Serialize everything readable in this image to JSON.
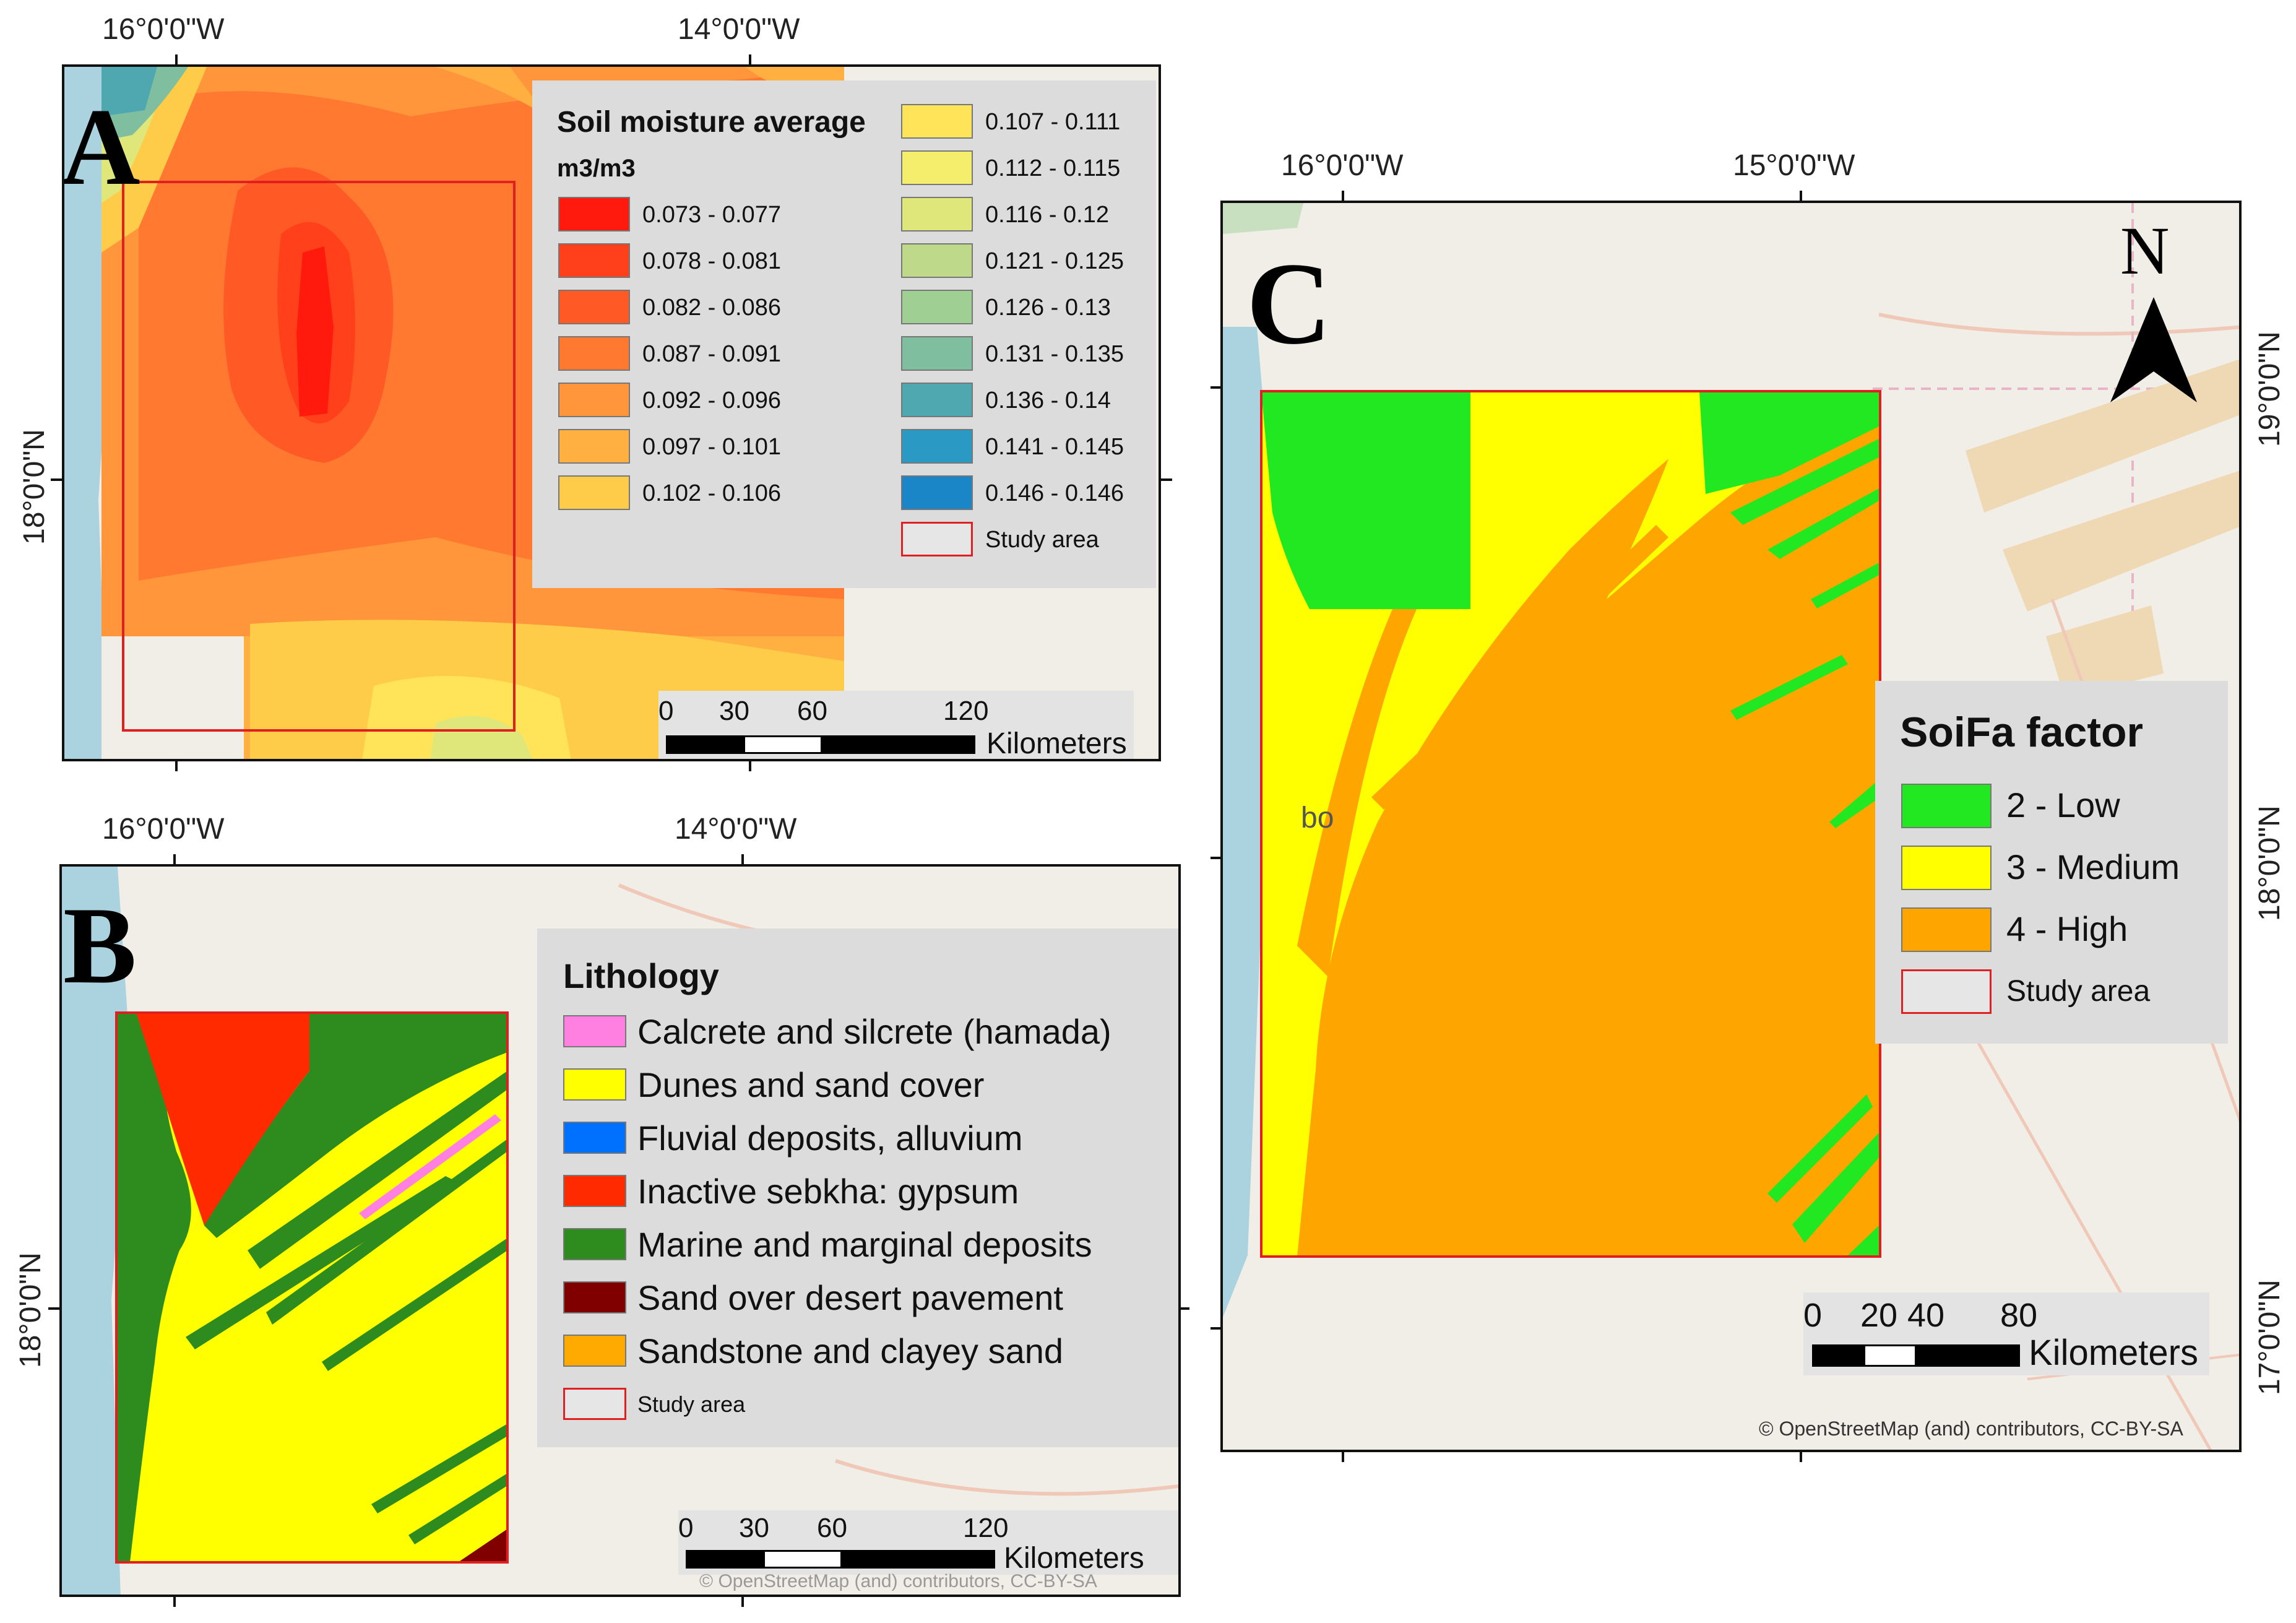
{
  "panel_a": {
    "letter": "A",
    "lon_labels": [
      "16°0'0\"W",
      "14°0'0\"W"
    ],
    "lat_label": "18°0'0\"N",
    "legend_title": "Soil moisture average",
    "legend_unit": "m3/m3",
    "legend_left": [
      {
        "label": "0.073 - 0.077",
        "color": "#ff1a0d"
      },
      {
        "label": "0.078 - 0.081",
        "color": "#ff401a"
      },
      {
        "label": "0.082 - 0.086",
        "color": "#ff5a26"
      },
      {
        "label": "0.087 - 0.091",
        "color": "#ff7a30"
      },
      {
        "label": "0.092 - 0.096",
        "color": "#ff963c"
      },
      {
        "label": "0.097 - 0.101",
        "color": "#ffb040"
      },
      {
        "label": "0.102 - 0.106",
        "color": "#ffcc4a"
      }
    ],
    "legend_right": [
      {
        "label": "0.107 - 0.111",
        "color": "#ffe45a"
      },
      {
        "label": "0.112 - 0.115",
        "color": "#f5ee6c"
      },
      {
        "label": "0.116 - 0.12",
        "color": "#dfe67a"
      },
      {
        "label": "0.121 - 0.125",
        "color": "#bfd98a"
      },
      {
        "label": "0.126 - 0.13",
        "color": "#9fcf92"
      },
      {
        "label": "0.131 - 0.135",
        "color": "#7fbfa0"
      },
      {
        "label": "0.136 - 0.14",
        "color": "#4fa8b0"
      },
      {
        "label": "0.141 - 0.145",
        "color": "#2a9ac4"
      },
      {
        "label": "0.146 - 0.146",
        "color": "#1a86c8"
      }
    ],
    "study_area": "Study area",
    "scale_numbers": [
      "0",
      "30",
      "60",
      "120"
    ],
    "scale_unit": "Kilometers"
  },
  "panel_b": {
    "letter": "B",
    "lon_labels": [
      "16°0'0\"W",
      "14°0'0\"W"
    ],
    "lat_label": "18°0'0\"N",
    "legend_title": "Lithology",
    "legend_items": [
      {
        "label": "Calcrete and silcrete (hamada)",
        "color": "#ff80e0"
      },
      {
        "label": "Dunes and sand cover",
        "color": "#ffff00"
      },
      {
        "label": "Fluvial deposits, alluvium",
        "color": "#0070ff"
      },
      {
        "label": "Inactive sebkha: gypsum",
        "color": "#ff2a00"
      },
      {
        "label": "Marine and marginal  deposits",
        "color": "#2e8b1e"
      },
      {
        "label": "Sand over desert pavement",
        "color": "#800000"
      },
      {
        "label": "Sandstone and clayey sand",
        "color": "#ffaa00"
      }
    ],
    "study_area": "Study area",
    "scale_numbers": [
      "0",
      "30",
      "60",
      "120"
    ],
    "scale_unit": "Kilometers",
    "attribution": "© OpenStreetMap (and) contributors, CC-BY-SA"
  },
  "panel_c": {
    "letter": "C",
    "north": "N",
    "lon_labels": [
      "16°0'0\"W",
      "15°0'0\"W"
    ],
    "lat_labels": [
      "19°0'0\"N",
      "18°0'0\"N",
      "17°0'0\"N"
    ],
    "legend_title": "SoiFa factor",
    "legend_items": [
      {
        "label": "2 - Low",
        "color": "#22e822"
      },
      {
        "label": "3 - Medium",
        "color": "#ffff00"
      },
      {
        "label": "4 - High",
        "color": "#ffa500"
      }
    ],
    "study_area": "Study area",
    "scale_numbers": [
      "0",
      "20",
      "40",
      "80"
    ],
    "scale_unit": "Kilometers",
    "attribution": "© OpenStreetMap (and) contributors, CC-BY-SA",
    "place_label": "bo"
  }
}
